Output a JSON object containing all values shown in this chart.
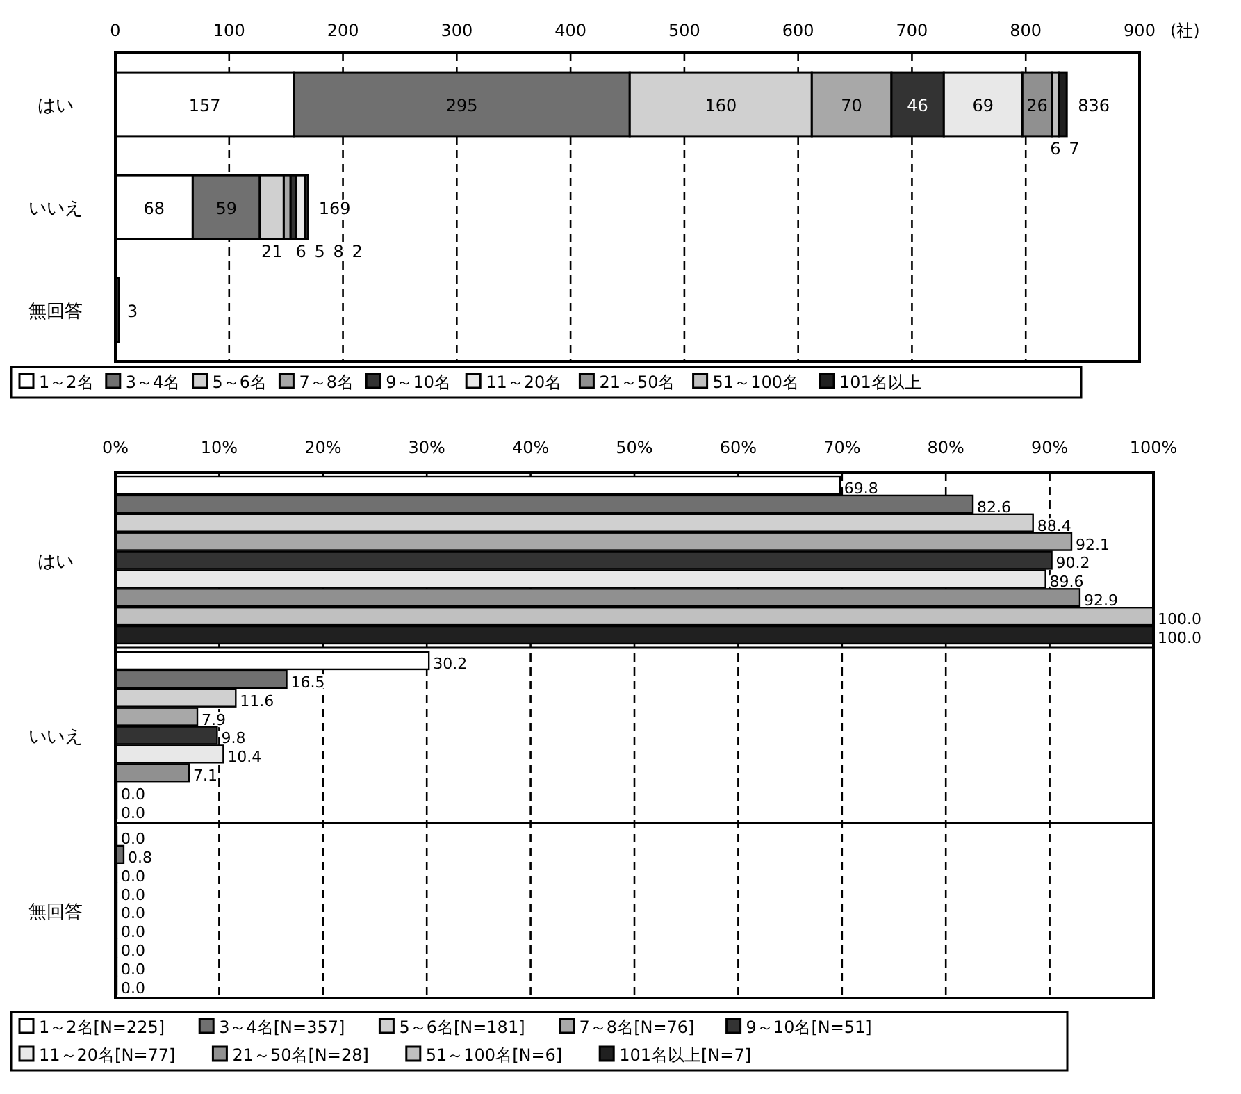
{
  "chart_data": [
    {
      "type": "bar",
      "orientation": "horizontal",
      "stacked": true,
      "categories": [
        "はい",
        "いいえ",
        "無回答"
      ],
      "xlabel": "(社)",
      "xlim": [
        0,
        900
      ],
      "xticks": [
        0,
        100,
        200,
        300,
        400,
        500,
        600,
        700,
        800,
        900
      ],
      "grid": "x",
      "legend": "bottom",
      "totals": [
        "836",
        "169",
        null
      ],
      "series": [
        {
          "name": "1～2名",
          "color": "#ffffff",
          "values": [
            157,
            68,
            0
          ],
          "value_labels": [
            "157",
            "68",
            null
          ]
        },
        {
          "name": "3～4名",
          "color": "#707070",
          "values": [
            295,
            59,
            3
          ],
          "value_labels": [
            "295",
            "59",
            "3"
          ]
        },
        {
          "name": "5～6名",
          "color": "#d0d0d0",
          "values": [
            160,
            21,
            0
          ],
          "value_labels": [
            "160",
            "21",
            null
          ]
        },
        {
          "name": "7～8名",
          "color": "#a8a8a8",
          "values": [
            70,
            6,
            0
          ],
          "value_labels": [
            "70",
            "6",
            null
          ]
        },
        {
          "name": "9～10名",
          "color": "#333333",
          "values": [
            46,
            5,
            0
          ],
          "value_labels": [
            "46",
            "5",
            null
          ]
        },
        {
          "name": "11～20名",
          "color": "#e8e8e8",
          "values": [
            69,
            8,
            0
          ],
          "value_labels": [
            "69",
            "8",
            null
          ]
        },
        {
          "name": "21～50名",
          "color": "#909090",
          "values": [
            26,
            2,
            0
          ],
          "value_labels": [
            "26",
            "2",
            null
          ]
        },
        {
          "name": "51～100名",
          "color": "#c0c0c0",
          "values": [
            6,
            0,
            0
          ],
          "value_labels": [
            "6",
            null,
            null
          ]
        },
        {
          "name": "101名以上",
          "color": "#202020",
          "values": [
            7,
            0,
            0
          ],
          "value_labels": [
            "7",
            null,
            null
          ]
        }
      ]
    },
    {
      "type": "bar",
      "orientation": "horizontal",
      "categories": [
        "はい",
        "いいえ",
        "無回答"
      ],
      "xlim": [
        0,
        100
      ],
      "xticks": [
        {
          "value": 0,
          "label": "0%"
        },
        {
          "value": 10,
          "label": "10%"
        },
        {
          "value": 20,
          "label": "20%"
        },
        {
          "value": 30,
          "label": "30%"
        },
        {
          "value": 40,
          "label": "40%"
        },
        {
          "value": 50,
          "label": "50%"
        },
        {
          "value": 60,
          "label": "60%"
        },
        {
          "value": 70,
          "label": "70%"
        },
        {
          "value": 80,
          "label": "80%"
        },
        {
          "value": 90,
          "label": "90%"
        },
        {
          "value": 100,
          "label": "100%"
        }
      ],
      "grid": "x",
      "legend": "bottom",
      "series": [
        {
          "name": "1～2名[N=225]",
          "color": "#ffffff",
          "values": [
            69.8,
            30.2,
            0.0
          ],
          "value_labels": [
            "69.8",
            "30.2",
            "0.0"
          ]
        },
        {
          "name": "3～4名[N=357]",
          "color": "#707070",
          "values": [
            82.6,
            16.5,
            0.8
          ],
          "value_labels": [
            "82.6",
            "16.5",
            "0.8"
          ]
        },
        {
          "name": "5～6名[N=181]",
          "color": "#d0d0d0",
          "values": [
            88.4,
            11.6,
            0.0
          ],
          "value_labels": [
            "88.4",
            "11.6",
            "0.0"
          ]
        },
        {
          "name": "7～8名[N=76]",
          "color": "#a8a8a8",
          "values": [
            92.1,
            7.9,
            0.0
          ],
          "value_labels": [
            "92.1",
            "7.9",
            "0.0"
          ]
        },
        {
          "name": "9～10名[N=51]",
          "color": "#333333",
          "values": [
            90.2,
            9.8,
            0.0
          ],
          "value_labels": [
            "90.2",
            "9.8",
            "0.0"
          ]
        },
        {
          "name": "11～20名[N=77]",
          "color": "#e8e8e8",
          "values": [
            89.6,
            10.4,
            0.0
          ],
          "value_labels": [
            "89.6",
            "10.4",
            "0.0"
          ]
        },
        {
          "name": "21～50名[N=28]",
          "color": "#909090",
          "values": [
            92.9,
            7.1,
            0.0
          ],
          "value_labels": [
            "92.9",
            "7.1",
            "0.0"
          ]
        },
        {
          "name": "51～100名[N=6]",
          "color": "#c0c0c0",
          "values": [
            100.0,
            0.0,
            0.0
          ],
          "value_labels": [
            "100.0",
            "0.0",
            "0.0"
          ]
        },
        {
          "name": "101名以上[N=7]",
          "color": "#202020",
          "values": [
            100.0,
            0.0,
            0.0
          ],
          "value_labels": [
            "100.0",
            "0.0",
            "0.0"
          ]
        }
      ]
    }
  ]
}
